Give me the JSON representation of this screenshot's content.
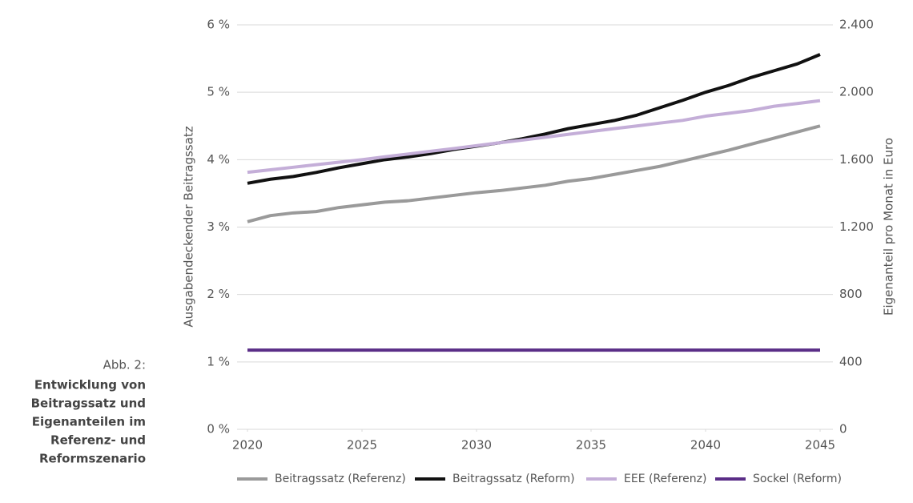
{
  "chart_data": {
    "type": "line",
    "caption": {
      "label": "Abb. 2:",
      "lines": [
        "Entwicklung von",
        "Beitragssatz und",
        "Eigenanteilen im",
        "Referenz- und",
        "Reformszenario"
      ]
    },
    "ylabel": "Ausgabendeckender Beitragssatz",
    "y2label": "Eigenanteil pro Monat in Euro",
    "x": [
      2020,
      2021,
      2022,
      2023,
      2024,
      2025,
      2026,
      2027,
      2028,
      2029,
      2030,
      2031,
      2032,
      2033,
      2034,
      2035,
      2036,
      2037,
      2038,
      2039,
      2040,
      2041,
      2042,
      2043,
      2044,
      2045
    ],
    "xlim": [
      2020,
      2045
    ],
    "xticks": [
      2020,
      2025,
      2030,
      2035,
      2040,
      2045
    ],
    "ylim": [
      0,
      6
    ],
    "yticks": [
      {
        "value": 0,
        "label": "0 %"
      },
      {
        "value": 1,
        "label": "1 %"
      },
      {
        "value": 2,
        "label": "2 %"
      },
      {
        "value": 3,
        "label": "3 %"
      },
      {
        "value": 4,
        "label": "4 %"
      },
      {
        "value": 5,
        "label": "5 %"
      },
      {
        "value": 6,
        "label": "6 %"
      }
    ],
    "y2lim": [
      0,
      2400
    ],
    "y2ticks": [
      0,
      400,
      800,
      {
        "value": 1200,
        "label": "1.200"
      },
      {
        "value": 1600,
        "label": "1.600"
      },
      {
        "value": 2000,
        "label": "2.000"
      },
      {
        "value": 2400,
        "label": "2.400"
      }
    ],
    "grid": true,
    "series": [
      {
        "name": "Beitragssatz (Referenz)",
        "color": "#9a9a9a",
        "values": [
          3.08,
          3.17,
          3.21,
          3.23,
          3.29,
          3.33,
          3.37,
          3.39,
          3.43,
          3.47,
          3.51,
          3.54,
          3.58,
          3.62,
          3.68,
          3.72,
          3.78,
          3.84,
          3.9,
          3.98,
          4.06,
          4.14,
          4.23,
          4.32,
          4.41,
          4.5
        ]
      },
      {
        "name": "Beitragssatz (Reform)",
        "color": "#111111",
        "values": [
          3.65,
          3.71,
          3.75,
          3.81,
          3.88,
          3.94,
          4.0,
          4.04,
          4.09,
          4.15,
          4.2,
          4.25,
          4.31,
          4.38,
          4.46,
          4.52,
          4.58,
          4.66,
          4.77,
          4.88,
          5.0,
          5.1,
          5.22,
          5.32,
          5.42,
          5.56
        ]
      },
      {
        "name": "EEE (Referenz)",
        "color": "#c4aed8",
        "axis": "y2",
        "values": [
          1525,
          1540,
          1555,
          1570,
          1585,
          1600,
          1617,
          1633,
          1650,
          1666,
          1683,
          1700,
          1716,
          1733,
          1750,
          1767,
          1784,
          1800,
          1817,
          1833,
          1858,
          1875,
          1892,
          1917,
          1933,
          1950
        ]
      },
      {
        "name": "Sockel (Reform)",
        "color": "#5a2d87",
        "axis": "y2",
        "values": [
          470,
          470,
          470,
          470,
          470,
          470,
          470,
          470,
          470,
          470,
          470,
          470,
          470,
          470,
          470,
          470,
          470,
          470,
          470,
          470,
          470,
          470,
          470,
          470,
          470,
          470
        ]
      }
    ]
  }
}
